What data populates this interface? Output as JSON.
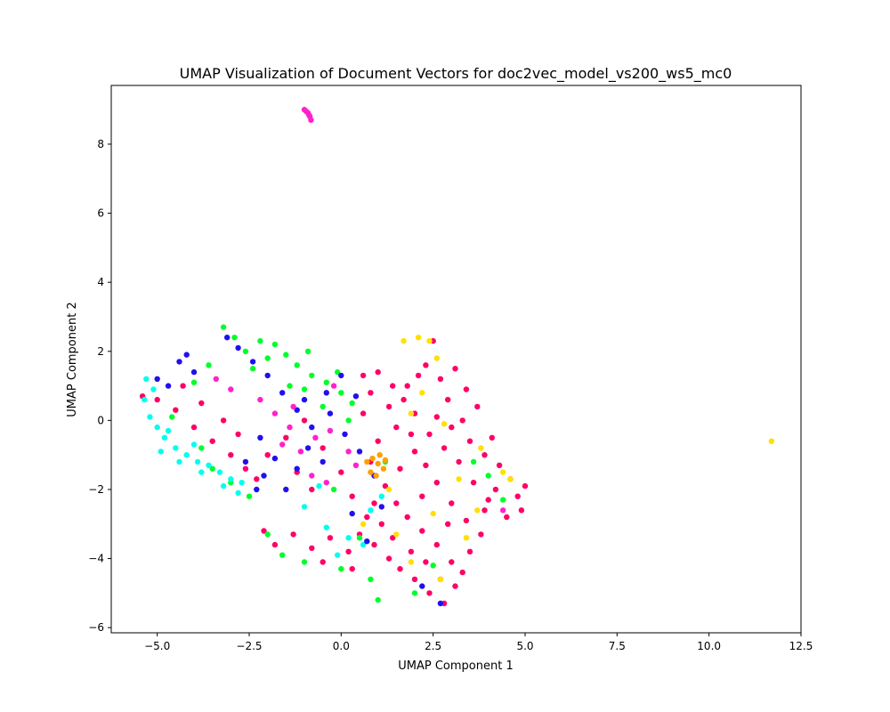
{
  "chart_data": {
    "type": "scatter",
    "title": "UMAP Visualization of Document Vectors for doc2vec_model_vs200_ws5_mc0",
    "xlabel": "UMAP Component 1",
    "ylabel": "UMAP Component 2",
    "xlim": [
      -6.25,
      12.5
    ],
    "ylim": [
      -6.15,
      9.7
    ],
    "xticks": [
      -5.0,
      -2.5,
      0.0,
      2.5,
      5.0,
      7.5,
      10.0,
      12.5
    ],
    "xtick_labels": [
      "−5.0",
      "−2.5",
      "0.0",
      "2.5",
      "5.0",
      "7.5",
      "10.0",
      "12.5"
    ],
    "yticks": [
      -6,
      -4,
      -2,
      0,
      2,
      4,
      6,
      8
    ],
    "ytick_labels": [
      "−6",
      "−4",
      "−2",
      "0",
      "2",
      "4",
      "6",
      "8"
    ],
    "grid": false,
    "legend": "none",
    "series": [
      {
        "color": "#ff0066",
        "points": [
          [
            -5.4,
            0.7
          ],
          [
            -5.0,
            0.6
          ],
          [
            -4.5,
            0.3
          ],
          [
            -4.0,
            -0.2
          ],
          [
            -3.5,
            -0.6
          ],
          [
            -3.0,
            -1.0
          ],
          [
            -2.6,
            -1.4
          ],
          [
            -4.3,
            1.0
          ],
          [
            -3.8,
            0.5
          ],
          [
            -3.2,
            0.0
          ],
          [
            -2.8,
            -0.4
          ],
          [
            -2.3,
            -1.7
          ],
          [
            -2.0,
            -1.0
          ],
          [
            -1.5,
            -0.5
          ],
          [
            -1.0,
            0.0
          ],
          [
            -0.5,
            -0.8
          ],
          [
            0.0,
            -1.5
          ],
          [
            0.3,
            -2.2
          ],
          [
            -0.8,
            -2.0
          ],
          [
            -1.2,
            -1.5
          ],
          [
            0.6,
            1.3
          ],
          [
            0.8,
            0.8
          ],
          [
            1.0,
            1.4
          ],
          [
            1.3,
            0.4
          ],
          [
            1.5,
            -0.2
          ],
          [
            1.8,
            1.0
          ],
          [
            2.0,
            0.2
          ],
          [
            2.3,
            1.6
          ],
          [
            2.5,
            2.3
          ],
          [
            2.7,
            1.2
          ],
          [
            2.9,
            0.6
          ],
          [
            3.1,
            1.5
          ],
          [
            3.3,
            0.0
          ],
          [
            3.5,
            -0.6
          ],
          [
            3.7,
            0.4
          ],
          [
            3.9,
            -1.0
          ],
          [
            4.1,
            -0.5
          ],
          [
            4.3,
            -1.3
          ],
          [
            4.6,
            -1.7
          ],
          [
            4.8,
            -2.2
          ],
          [
            5.0,
            -1.9
          ],
          [
            4.9,
            -2.6
          ],
          [
            4.5,
            -2.8
          ],
          [
            4.0,
            -2.3
          ],
          [
            3.6,
            -1.8
          ],
          [
            3.2,
            -1.2
          ],
          [
            2.8,
            -0.8
          ],
          [
            2.4,
            -0.4
          ],
          [
            2.0,
            -0.9
          ],
          [
            1.6,
            -1.4
          ],
          [
            1.2,
            -1.9
          ],
          [
            0.9,
            -2.4
          ],
          [
            1.1,
            -3.0
          ],
          [
            1.4,
            -3.4
          ],
          [
            1.8,
            -2.8
          ],
          [
            2.2,
            -2.2
          ],
          [
            2.6,
            -1.8
          ],
          [
            3.0,
            -2.4
          ],
          [
            3.4,
            -2.9
          ],
          [
            3.8,
            -3.3
          ],
          [
            3.5,
            -3.8
          ],
          [
            3.0,
            -4.1
          ],
          [
            2.6,
            -3.6
          ],
          [
            2.2,
            -3.2
          ],
          [
            1.9,
            -3.8
          ],
          [
            1.6,
            -4.3
          ],
          [
            2.0,
            -4.6
          ],
          [
            2.4,
            -5.0
          ],
          [
            2.8,
            -5.3
          ],
          [
            3.1,
            -4.8
          ],
          [
            3.3,
            -4.4
          ],
          [
            2.7,
            -4.6
          ],
          [
            2.3,
            -4.1
          ],
          [
            1.3,
            -4.0
          ],
          [
            0.9,
            -3.6
          ],
          [
            0.5,
            -3.3
          ],
          [
            0.2,
            -3.8
          ],
          [
            -0.3,
            -3.4
          ],
          [
            -0.8,
            -3.7
          ],
          [
            -1.3,
            -3.3
          ],
          [
            -1.8,
            -3.6
          ],
          [
            -2.1,
            -3.2
          ],
          [
            -0.5,
            -4.1
          ],
          [
            0.3,
            -4.3
          ],
          [
            0.7,
            -2.8
          ],
          [
            1.7,
            0.6
          ],
          [
            2.1,
            1.3
          ],
          [
            2.6,
            0.1
          ],
          [
            3.0,
            -0.2
          ],
          [
            3.4,
            0.9
          ],
          [
            1.4,
            1.0
          ],
          [
            1.9,
            -0.4
          ],
          [
            2.3,
            -1.3
          ],
          [
            1.0,
            -0.6
          ],
          [
            0.6,
            0.2
          ],
          [
            4.2,
            -2.0
          ],
          [
            3.9,
            -2.6
          ],
          [
            2.9,
            -3.0
          ],
          [
            1.5,
            -2.4
          ],
          [
            0.8,
            -1.2
          ]
        ]
      },
      {
        "color": "#00ff2a",
        "points": [
          [
            -2.6,
            2.0
          ],
          [
            -2.2,
            2.3
          ],
          [
            -1.8,
            2.2
          ],
          [
            -1.5,
            1.9
          ],
          [
            -1.2,
            1.6
          ],
          [
            -0.8,
            1.3
          ],
          [
            -0.4,
            1.1
          ],
          [
            0.0,
            0.8
          ],
          [
            0.3,
            0.5
          ],
          [
            -2.4,
            1.5
          ],
          [
            -2.0,
            1.8
          ],
          [
            -1.0,
            0.9
          ],
          [
            -0.5,
            0.4
          ],
          [
            0.2,
            0.0
          ],
          [
            -3.2,
            2.7
          ],
          [
            -2.9,
            2.4
          ],
          [
            -3.6,
            1.6
          ],
          [
            -4.0,
            1.1
          ],
          [
            -3.5,
            -1.4
          ],
          [
            -3.0,
            -1.8
          ],
          [
            -2.5,
            -2.2
          ],
          [
            -2.0,
            -3.3
          ],
          [
            -1.6,
            -3.9
          ],
          [
            -1.0,
            -4.1
          ],
          [
            0.0,
            -4.3
          ],
          [
            0.8,
            -4.6
          ],
          [
            1.0,
            -5.2
          ],
          [
            2.0,
            -5.0
          ],
          [
            2.5,
            -4.2
          ],
          [
            3.6,
            -1.2
          ],
          [
            4.0,
            -1.6
          ],
          [
            4.4,
            -2.3
          ],
          [
            0.5,
            -3.4
          ],
          [
            -0.2,
            -2.0
          ],
          [
            1.2,
            -1.2
          ],
          [
            -1.4,
            1.0
          ],
          [
            -0.9,
            2.0
          ],
          [
            -0.1,
            1.4
          ],
          [
            -3.8,
            -0.8
          ],
          [
            -4.6,
            0.1
          ]
        ]
      },
      {
        "color": "#00ffee",
        "points": [
          [
            -5.3,
            1.2
          ],
          [
            -5.35,
            0.6
          ],
          [
            -5.2,
            0.1
          ],
          [
            -5.0,
            -0.2
          ],
          [
            -4.8,
            -0.5
          ],
          [
            -4.5,
            -0.8
          ],
          [
            -4.2,
            -1.0
          ],
          [
            -3.9,
            -1.2
          ],
          [
            -3.6,
            -1.3
          ],
          [
            -3.3,
            -1.5
          ],
          [
            -3.0,
            -1.7
          ],
          [
            -2.7,
            -1.8
          ],
          [
            -4.9,
            -0.9
          ],
          [
            -4.4,
            -1.2
          ],
          [
            -3.8,
            -1.5
          ],
          [
            -3.2,
            -1.9
          ],
          [
            -2.8,
            -2.1
          ],
          [
            -5.1,
            0.9
          ],
          [
            -4.7,
            -0.3
          ],
          [
            -4.0,
            -0.7
          ],
          [
            0.2,
            -3.4
          ],
          [
            0.6,
            -3.6
          ],
          [
            -0.1,
            -3.9
          ],
          [
            -0.4,
            -3.1
          ],
          [
            0.8,
            -2.6
          ],
          [
            1.1,
            -2.2
          ],
          [
            -1.0,
            -2.5
          ],
          [
            -0.6,
            -1.9
          ]
        ]
      },
      {
        "color": "#2010ee",
        "points": [
          [
            -5.0,
            1.2
          ],
          [
            -4.7,
            1.0
          ],
          [
            -4.4,
            1.7
          ],
          [
            -4.2,
            1.9
          ],
          [
            -4.0,
            1.4
          ],
          [
            -3.1,
            2.4
          ],
          [
            -2.8,
            2.1
          ],
          [
            -2.4,
            1.7
          ],
          [
            -2.0,
            1.3
          ],
          [
            -1.6,
            0.8
          ],
          [
            -1.2,
            0.3
          ],
          [
            -0.8,
            -0.2
          ],
          [
            -0.4,
            0.8
          ],
          [
            0.0,
            1.3
          ],
          [
            0.4,
            0.7
          ],
          [
            -2.2,
            -0.5
          ],
          [
            -1.8,
            -1.1
          ],
          [
            -2.1,
            -1.6
          ],
          [
            -1.5,
            -2.0
          ],
          [
            -1.2,
            -1.4
          ],
          [
            -0.9,
            -0.8
          ],
          [
            -0.5,
            -1.2
          ],
          [
            0.1,
            -0.4
          ],
          [
            0.5,
            -0.9
          ],
          [
            0.9,
            -1.6
          ],
          [
            1.1,
            -2.5
          ],
          [
            0.7,
            -3.5
          ],
          [
            0.3,
            -2.7
          ],
          [
            -2.6,
            -1.2
          ],
          [
            -2.3,
            -2.0
          ],
          [
            2.7,
            -5.3
          ],
          [
            2.2,
            -4.8
          ],
          [
            -0.3,
            0.2
          ],
          [
            -1.0,
            0.6
          ]
        ]
      },
      {
        "color": "#ff22cc",
        "points": [
          [
            -1.0,
            9.0
          ],
          [
            -0.95,
            8.95
          ],
          [
            -0.9,
            8.9
          ],
          [
            -0.85,
            8.8
          ],
          [
            -0.82,
            8.7
          ],
          [
            -0.88,
            8.85
          ],
          [
            -2.2,
            0.6
          ],
          [
            -1.8,
            0.2
          ],
          [
            -1.4,
            -0.2
          ],
          [
            -1.1,
            -0.9
          ],
          [
            -0.7,
            -0.5
          ],
          [
            -0.3,
            -0.3
          ],
          [
            0.2,
            -0.9
          ],
          [
            -1.6,
            -0.7
          ],
          [
            -0.8,
            -1.6
          ],
          [
            -1.3,
            0.4
          ],
          [
            -3.0,
            0.9
          ],
          [
            -3.4,
            1.2
          ],
          [
            -0.4,
            -1.8
          ],
          [
            0.4,
            -1.3
          ],
          [
            4.4,
            -2.6
          ],
          [
            -0.2,
            1.0
          ]
        ]
      },
      {
        "color": "#ffa000",
        "points": [
          [
            0.7,
            -1.2
          ],
          [
            0.85,
            -1.1
          ],
          [
            1.0,
            -1.25
          ],
          [
            1.15,
            -1.4
          ],
          [
            0.8,
            -1.5
          ],
          [
            1.05,
            -1.0
          ],
          [
            0.95,
            -1.6
          ],
          [
            1.2,
            -1.15
          ]
        ]
      },
      {
        "color": "#ffe000",
        "points": [
          [
            11.7,
            -0.6
          ],
          [
            1.7,
            2.3
          ],
          [
            2.1,
            2.4
          ],
          [
            2.4,
            2.3
          ],
          [
            2.6,
            1.8
          ],
          [
            2.2,
            0.8
          ],
          [
            1.9,
            0.2
          ],
          [
            2.8,
            -0.1
          ],
          [
            3.2,
            -1.7
          ],
          [
            3.7,
            -2.6
          ],
          [
            4.4,
            -1.5
          ],
          [
            4.6,
            -1.7
          ],
          [
            2.5,
            -2.7
          ],
          [
            1.5,
            -3.3
          ],
          [
            1.9,
            -4.1
          ],
          [
            2.7,
            -4.6
          ],
          [
            3.4,
            -3.4
          ],
          [
            1.3,
            -2.0
          ],
          [
            3.8,
            -0.8
          ],
          [
            0.6,
            -3.0
          ]
        ]
      }
    ]
  }
}
